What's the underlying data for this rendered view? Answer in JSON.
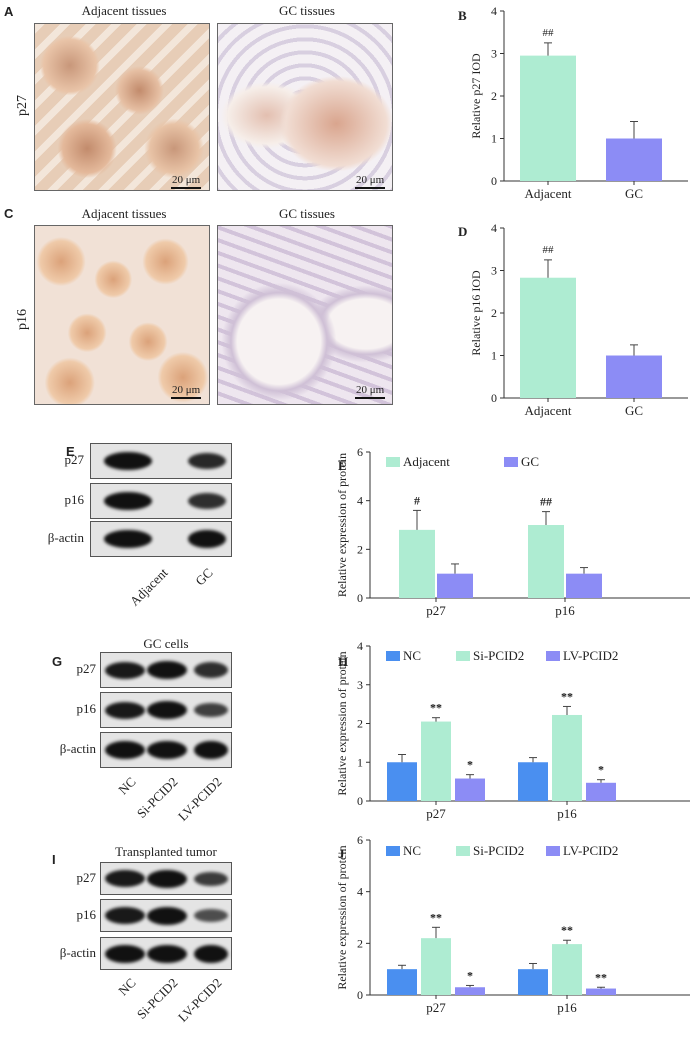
{
  "panels": {
    "A": {
      "letter": "A",
      "title_left": "Adjacent tissues",
      "title_right": "GC tissues",
      "row_label": "p27",
      "scale_left": "20 μm",
      "scale_right": "20 μm"
    },
    "C": {
      "letter": "C",
      "title_left": "Adjacent tissues",
      "title_right": "GC tissues",
      "row_label": "p16",
      "scale_left": "20 μm",
      "scale_right": "20 μm"
    },
    "E": {
      "letter": "E",
      "rows": [
        "p27",
        "p16",
        "β-actin"
      ],
      "lanes": [
        "Adjacent",
        "GC"
      ],
      "title": ""
    },
    "G": {
      "letter": "G",
      "rows": [
        "p27",
        "p16",
        "β-actin"
      ],
      "lanes": [
        "NC",
        "Si-PCID2",
        "LV-PCID2"
      ],
      "title": "GC cells"
    },
    "I": {
      "letter": "I",
      "rows": [
        "p27",
        "p16",
        "β-actin"
      ],
      "lanes": [
        "NC",
        "Si-PCID2",
        "LV-PCID2"
      ],
      "title": "Transplanted tumor"
    }
  },
  "chart_data": [
    {
      "id": "B",
      "letter": "B",
      "type": "bar",
      "ylabel": "Relative p27 IOD",
      "ylim": [
        0,
        4
      ],
      "yticks": [
        "0",
        "1",
        "2",
        "3",
        "4"
      ],
      "categories": [
        "Adjacent",
        "GC"
      ],
      "values": [
        2.95,
        1.0
      ],
      "errors": [
        0.3,
        0.4
      ],
      "annotations": [
        "##",
        ""
      ],
      "colors": [
        "#aeecd2",
        "#8c8cf5"
      ]
    },
    {
      "id": "D",
      "letter": "D",
      "type": "bar",
      "ylabel": "Relative p16 IOD",
      "ylim": [
        0,
        4
      ],
      "yticks": [
        "0",
        "1",
        "2",
        "3",
        "4"
      ],
      "categories": [
        "Adjacent",
        "GC"
      ],
      "values": [
        2.83,
        1.0
      ],
      "errors": [
        0.42,
        0.25
      ],
      "annotations": [
        "##",
        ""
      ],
      "colors": [
        "#aeecd2",
        "#8c8cf5"
      ]
    },
    {
      "id": "F",
      "letter": "F",
      "type": "bar",
      "ylabel": "Relative expression of protein",
      "ylim": [
        0,
        6
      ],
      "yticks": [
        "0",
        "2",
        "4",
        "6"
      ],
      "categories": [
        "p27",
        "p16"
      ],
      "series": [
        {
          "name": "Adjacent",
          "color": "#aeecd2",
          "values": [
            2.8,
            3.0
          ],
          "errors": [
            0.8,
            0.55
          ],
          "annotations": [
            "#",
            "##"
          ]
        },
        {
          "name": "GC",
          "color": "#8c8cf5",
          "values": [
            1.0,
            1.0
          ],
          "errors": [
            0.4,
            0.25
          ],
          "annotations": [
            "",
            ""
          ]
        }
      ]
    },
    {
      "id": "H",
      "letter": "H",
      "type": "bar",
      "ylabel": "Relative expression of protein",
      "ylim": [
        0,
        4
      ],
      "yticks": [
        "0",
        "1",
        "2",
        "3",
        "4"
      ],
      "categories": [
        "p27",
        "p16"
      ],
      "series": [
        {
          "name": "NC",
          "color": "#4a8ff0",
          "values": [
            1.0,
            1.0
          ],
          "errors": [
            0.2,
            0.12
          ],
          "annotations": [
            "",
            ""
          ]
        },
        {
          "name": "Si-PCID2",
          "color": "#aeecd2",
          "values": [
            2.05,
            2.22
          ],
          "errors": [
            0.1,
            0.22
          ],
          "annotations": [
            "**",
            "**"
          ]
        },
        {
          "name": "LV-PCID2",
          "color": "#8c8cf5",
          "values": [
            0.58,
            0.47
          ],
          "errors": [
            0.1,
            0.08
          ],
          "annotations": [
            "*",
            "*"
          ]
        }
      ]
    },
    {
      "id": "J",
      "letter": "J",
      "type": "bar",
      "ylabel": "Relative expression of protein",
      "ylim": [
        0,
        6
      ],
      "yticks": [
        "0",
        "2",
        "4",
        "6"
      ],
      "categories": [
        "p27",
        "p16"
      ],
      "series": [
        {
          "name": "NC",
          "color": "#4a8ff0",
          "values": [
            1.0,
            1.0
          ],
          "errors": [
            0.15,
            0.22
          ],
          "annotations": [
            "",
            ""
          ]
        },
        {
          "name": "Si-PCID2",
          "color": "#aeecd2",
          "values": [
            2.2,
            1.97
          ],
          "errors": [
            0.42,
            0.15
          ],
          "annotations": [
            "**",
            "**"
          ]
        },
        {
          "name": "LV-PCID2",
          "color": "#8c8cf5",
          "values": [
            0.3,
            0.25
          ],
          "errors": [
            0.07,
            0.05
          ],
          "annotations": [
            "*",
            "**"
          ]
        }
      ]
    }
  ]
}
